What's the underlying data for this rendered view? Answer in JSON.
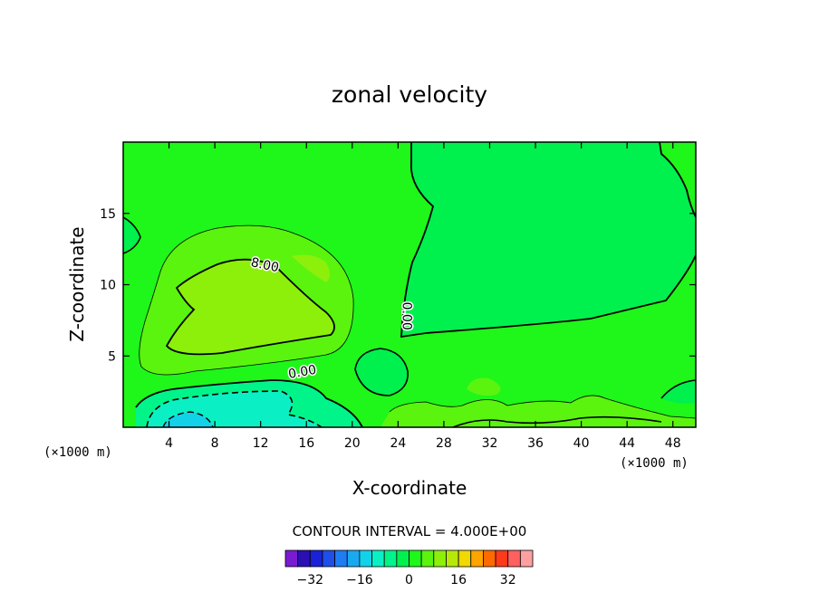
{
  "chart_data": {
    "type": "heatmap",
    "title": "zonal velocity",
    "xlabel": "X-coordinate",
    "ylabel": "Z-coordinate",
    "x_unit_label_left": "(×1000 m)",
    "x_unit_label_right": "(×1000 m)",
    "xlim": [
      0,
      50
    ],
    "ylim": [
      0,
      20
    ],
    "x_ticks": [
      4,
      8,
      12,
      16,
      20,
      24,
      28,
      32,
      36,
      40,
      44,
      48
    ],
    "y_ticks": [
      5,
      10,
      15
    ],
    "contour_interval_text": "CONTOUR INTERVAL = 4.000E+00",
    "contour_labels": [
      {
        "text": "8.00",
        "x": 12.3,
        "z": 11.1
      },
      {
        "text": "0.00",
        "x": 15.7,
        "z": 3.6
      },
      {
        "text": "0.00",
        "x": 24.4,
        "z": 7.8
      }
    ],
    "colorbar": {
      "levels": [
        -36,
        -32,
        -28,
        -24,
        -20,
        -16,
        -12,
        -8,
        -4,
        0,
        4,
        8,
        12,
        16,
        20,
        24,
        28,
        32,
        36
      ],
      "colors": [
        "#7a1bd1",
        "#2a0fb4",
        "#1a22d8",
        "#1e4fe9",
        "#1f7cf2",
        "#1aa9f0",
        "#12d2ea",
        "#0af0c4",
        "#00f48a",
        "#00f04e",
        "#1ff61a",
        "#5af40f",
        "#8cf00a",
        "#b8e80a",
        "#f0d800",
        "#ffa500",
        "#ff6a00",
        "#ff3a1a",
        "#ff6060",
        "#ffa0a0"
      ],
      "tick_labels": [
        "-32",
        "-16",
        "0",
        "16",
        "32"
      ],
      "tick_values": [
        -32,
        -16,
        0,
        16,
        32
      ]
    },
    "regions": [
      {
        "value_range": [
          0,
          4
        ],
        "desc": "background"
      },
      {
        "value_range": [
          4,
          8
        ],
        "desc": "upstream jet x≈2-20 km, z≈3-14 km"
      },
      {
        "value_range": [
          8,
          12
        ],
        "desc": "jet core x≈5-18 km, z≈5.5-12 km"
      },
      {
        "value_range": [
          -4,
          0
        ],
        "desc": "downstream upper region x≈25-50 km, z≈6-20 km"
      },
      {
        "value_range": [
          -12,
          -4
        ],
        "desc": "low-level reversed flow x≈1-19 km, z≈0-3 km"
      }
    ]
  }
}
